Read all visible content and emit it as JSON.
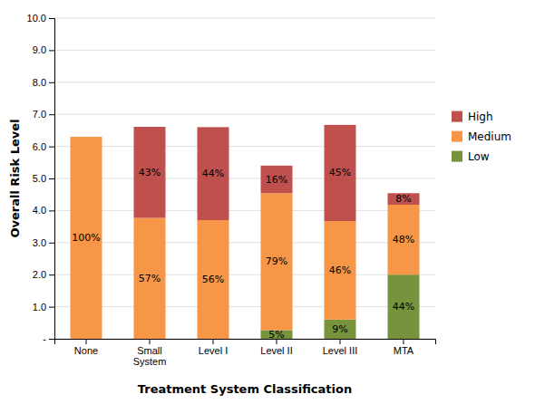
{
  "chart_data": {
    "type": "bar",
    "stacked": true,
    "categories": [
      "None",
      "Small\nSystem",
      "Level I",
      "Level II",
      "Level III",
      "MTA"
    ],
    "series": [
      {
        "name": "Low",
        "color": "#77933C",
        "values": [
          0.0,
          0.0,
          0.0,
          0.27,
          0.6,
          2.0
        ],
        "share_labels": [
          null,
          null,
          null,
          "5%",
          "9%",
          "44%"
        ]
      },
      {
        "name": "Medium",
        "color": "#F79646",
        "values": [
          6.3,
          3.77,
          3.7,
          4.27,
          3.07,
          2.18
        ],
        "share_labels": [
          "100%",
          "57%",
          "56%",
          "79%",
          "46%",
          "48%"
        ]
      },
      {
        "name": "High",
        "color": "#C0504D",
        "values": [
          0.0,
          2.84,
          2.9,
          0.86,
          3.0,
          0.36
        ],
        "share_labels": [
          null,
          "43%",
          "44%",
          "16%",
          "45%",
          "8%"
        ]
      }
    ],
    "xlabel": "Treatment System Classification",
    "ylabel": "Overall Risk Level",
    "ylim": [
      0,
      10.0
    ],
    "yticks": [
      {
        "value": 0,
        "label": "-"
      },
      {
        "value": 1.0,
        "label": "1.0"
      },
      {
        "value": 2.0,
        "label": "2.0"
      },
      {
        "value": 3.0,
        "label": "3.0"
      },
      {
        "value": 4.0,
        "label": "4.0"
      },
      {
        "value": 5.0,
        "label": "5.0"
      },
      {
        "value": 6.0,
        "label": "6.0"
      },
      {
        "value": 7.0,
        "label": "7.0"
      },
      {
        "value": 8.0,
        "label": "8.0"
      },
      {
        "value": 9.0,
        "label": "9.0"
      },
      {
        "value": 10.0,
        "label": "10.0"
      }
    ],
    "grid": true,
    "legend": "right"
  }
}
